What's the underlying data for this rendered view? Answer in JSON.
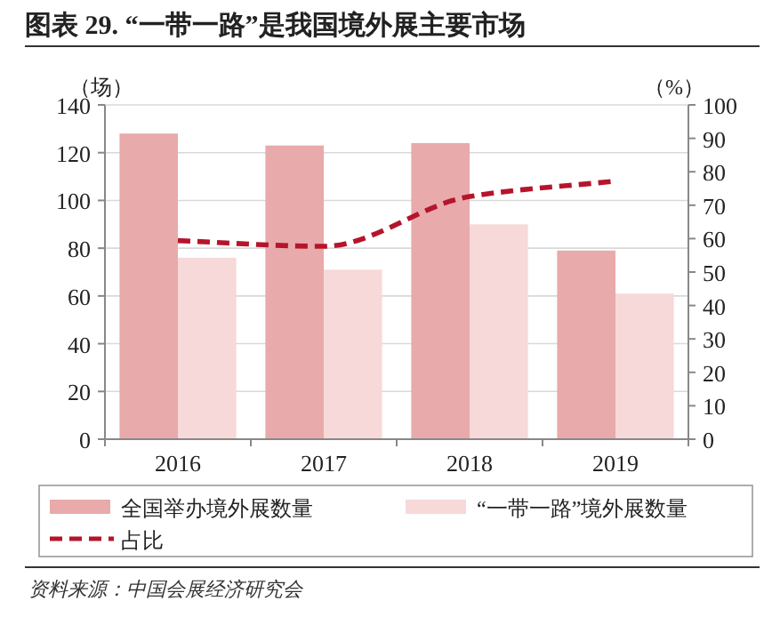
{
  "chart_data": {
    "type": "bar",
    "title": "图表 29. “一带一路”是我国境外展主要市场",
    "ylabel": "（场）",
    "y2label": "（%）",
    "categories": [
      "2016",
      "2017",
      "2018",
      "2019"
    ],
    "series": [
      {
        "name": "全国举办境外展数量",
        "color": "#e8aaaa",
        "values": [
          128,
          123,
          124,
          79
        ]
      },
      {
        "name": "“一带一路”境外展数量",
        "color": "#f7d9d9",
        "values": [
          76,
          71,
          90,
          61
        ]
      },
      {
        "name": "占比",
        "type": "line",
        "axis": "y2",
        "color": "#b5152b",
        "line_style": "dashed",
        "values": [
          59.4,
          57.7,
          72.6,
          77.2
        ]
      }
    ],
    "ylim": [
      0,
      140
    ],
    "yticks": [
      0,
      20,
      40,
      60,
      80,
      100,
      120,
      140
    ],
    "y2lim": [
      0,
      100
    ],
    "y2ticks": [
      0,
      10,
      20,
      30,
      40,
      50,
      60,
      70,
      80,
      90,
      100
    ],
    "grid": "y",
    "legend": "bottom",
    "annotations": [
      "资料来源：中国会展经济研究会"
    ]
  }
}
